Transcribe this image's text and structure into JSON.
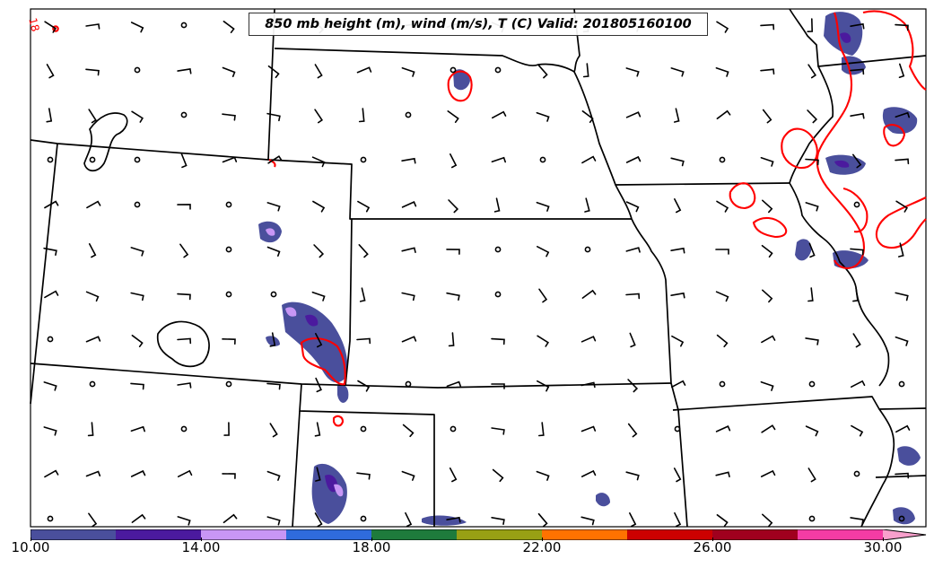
{
  "title": "850 mb height (m), wind (m/s), T (C) Valid: 201805160100",
  "contour_label": "18",
  "colorbar": {
    "ticks": [
      "10.00",
      "14.00",
      "18.00",
      "22.00",
      "26.00",
      "30.00"
    ],
    "tick_values": [
      10,
      14,
      18,
      22,
      26,
      30
    ],
    "range": [
      10,
      31
    ],
    "colors": [
      "#4a4f9c",
      "#4b1a9e",
      "#c896f5",
      "#2f6bdc",
      "#1e7b3c",
      "#98a014",
      "#ff7200",
      "#cc0000",
      "#a0001e",
      "#f43ca4",
      "#f8a0cc"
    ]
  },
  "colors": {
    "state_lines": "#000000",
    "temperature_contour": "#ff0000",
    "shading_low": "#4a4f9c",
    "shading_mid": "#4b1a9e",
    "shading_high": "#c896f5"
  }
}
